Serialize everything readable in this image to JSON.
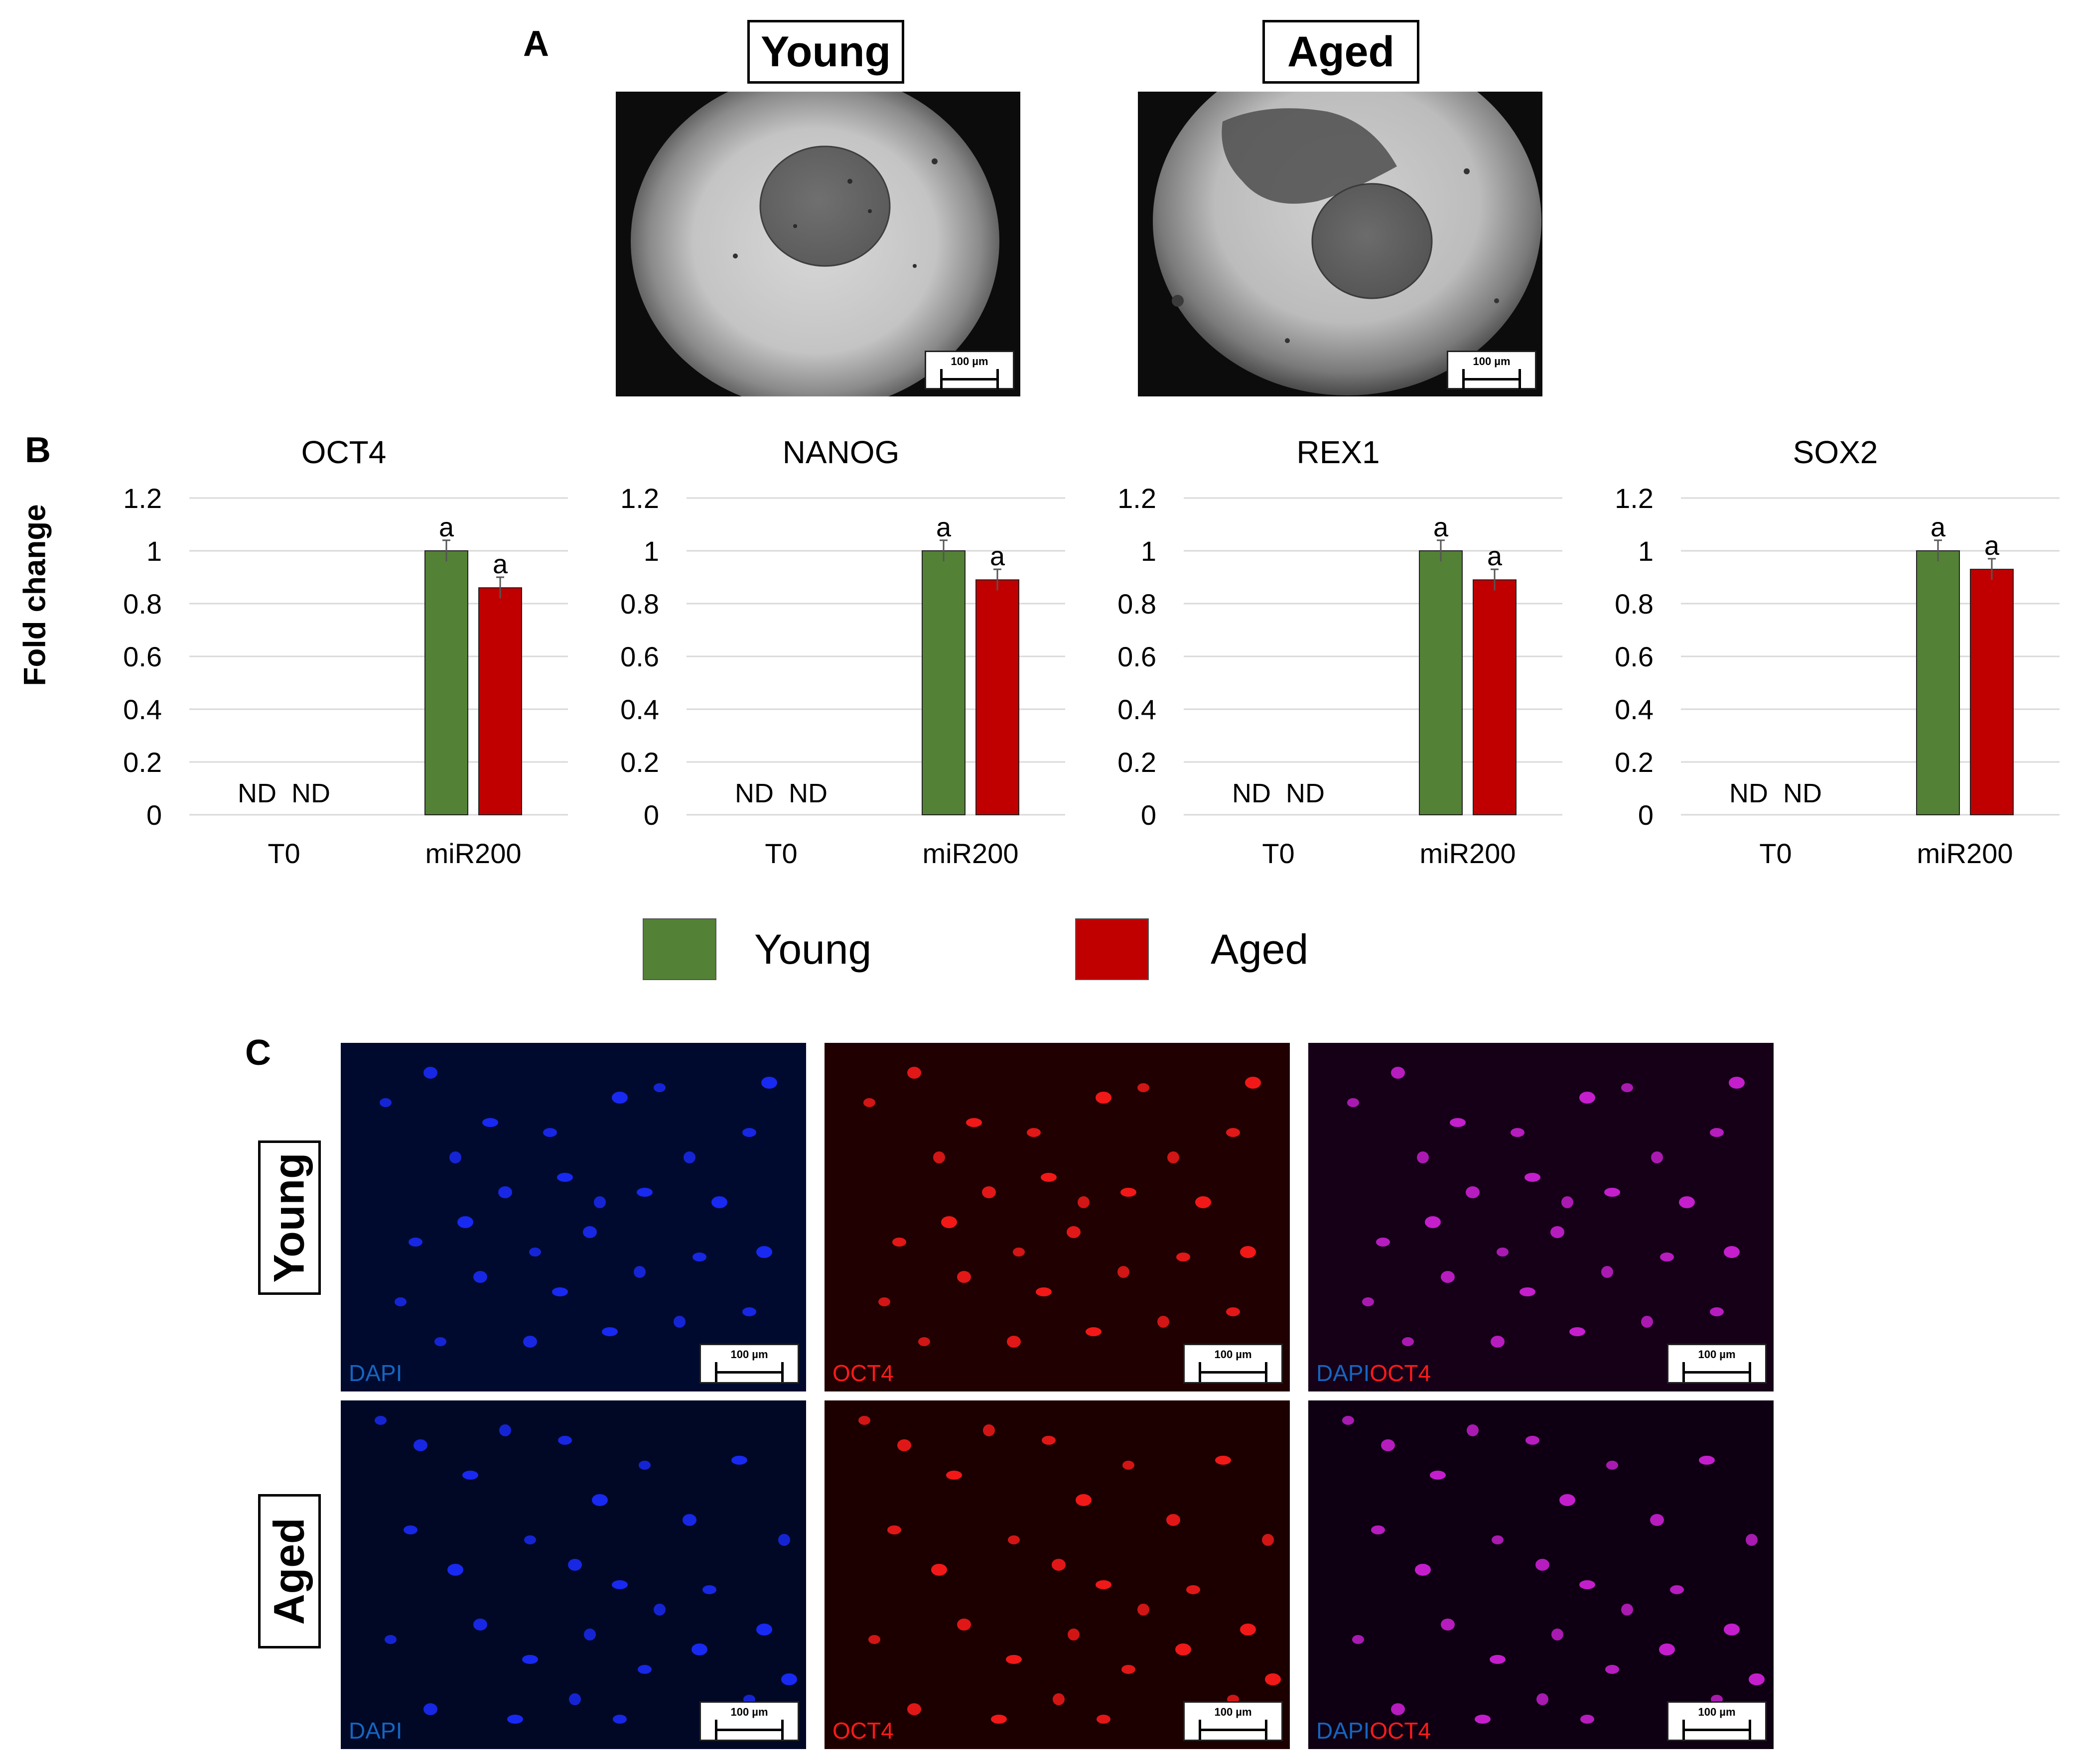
{
  "panel_a": {
    "letter": "A",
    "young_label": "Young",
    "aged_label": "Aged",
    "scale_label": "100 µm"
  },
  "panel_b": {
    "letter": "B",
    "y_axis_label": "Fold change",
    "legend": [
      {
        "label": "Young",
        "color": "#538135"
      },
      {
        "label": "Aged",
        "color": "#c00000"
      }
    ]
  },
  "chart_data": [
    {
      "type": "bar",
      "title": "OCT4",
      "categories": [
        "T0",
        "miR200"
      ],
      "ylim": [
        0,
        1.2
      ],
      "yticks": [
        "0",
        "0.2",
        "0.4",
        "0.6",
        "0.8",
        "1",
        "1.2"
      ],
      "ylabel": "Fold change",
      "series": [
        {
          "name": "Young",
          "color": "#538135",
          "values": [
            null,
            1.0
          ],
          "errors": [
            null,
            0.04
          ],
          "labels": [
            "ND",
            "a"
          ]
        },
        {
          "name": "Aged",
          "color": "#c00000",
          "values": [
            null,
            0.86
          ],
          "errors": [
            null,
            0.04
          ],
          "labels": [
            "ND",
            "a"
          ]
        }
      ]
    },
    {
      "type": "bar",
      "title": "NANOG",
      "categories": [
        "T0",
        "miR200"
      ],
      "ylim": [
        0,
        1.2
      ],
      "yticks": [
        "0",
        "0.2",
        "0.4",
        "0.6",
        "0.8",
        "1",
        "1.2"
      ],
      "ylabel": "Fold change",
      "series": [
        {
          "name": "Young",
          "color": "#538135",
          "values": [
            null,
            1.0
          ],
          "errors": [
            null,
            0.04
          ],
          "labels": [
            "ND",
            "a"
          ]
        },
        {
          "name": "Aged",
          "color": "#c00000",
          "values": [
            null,
            0.89
          ],
          "errors": [
            null,
            0.04
          ],
          "labels": [
            "ND",
            "a"
          ]
        }
      ]
    },
    {
      "type": "bar",
      "title": "REX1",
      "categories": [
        "T0",
        "miR200"
      ],
      "ylim": [
        0,
        1.2
      ],
      "yticks": [
        "0",
        "0.2",
        "0.4",
        "0.6",
        "0.8",
        "1",
        "1.2"
      ],
      "ylabel": "Fold change",
      "series": [
        {
          "name": "Young",
          "color": "#538135",
          "values": [
            null,
            1.0
          ],
          "errors": [
            null,
            0.04
          ],
          "labels": [
            "ND",
            "a"
          ]
        },
        {
          "name": "Aged",
          "color": "#c00000",
          "values": [
            null,
            0.89
          ],
          "errors": [
            null,
            0.04
          ],
          "labels": [
            "ND",
            "a"
          ]
        }
      ]
    },
    {
      "type": "bar",
      "title": "SOX2",
      "categories": [
        "T0",
        "miR200"
      ],
      "ylim": [
        0,
        1.2
      ],
      "yticks": [
        "0",
        "0.2",
        "0.4",
        "0.6",
        "0.8",
        "1",
        "1.2"
      ],
      "ylabel": "Fold change",
      "series": [
        {
          "name": "Young",
          "color": "#538135",
          "values": [
            null,
            1.0
          ],
          "errors": [
            null,
            0.04
          ],
          "labels": [
            "ND",
            "a"
          ]
        },
        {
          "name": "Aged",
          "color": "#c00000",
          "values": [
            null,
            0.93
          ],
          "errors": [
            null,
            0.04
          ],
          "labels": [
            "ND",
            "a"
          ]
        }
      ]
    }
  ],
  "panel_c": {
    "letter": "C",
    "young_label": "Young",
    "aged_label": "Aged",
    "scale_label": "100 µm",
    "channels": [
      {
        "parts": [
          {
            "text": "DAPI",
            "color": "#1565c0"
          }
        ]
      },
      {
        "parts": [
          {
            "text": "OCT4",
            "color": "#ff1a1a"
          }
        ]
      },
      {
        "parts": [
          {
            "text": "DAPI",
            "color": "#1565c0"
          },
          {
            "text": "OCT4",
            "color": "#ff1a1a"
          }
        ]
      }
    ]
  }
}
